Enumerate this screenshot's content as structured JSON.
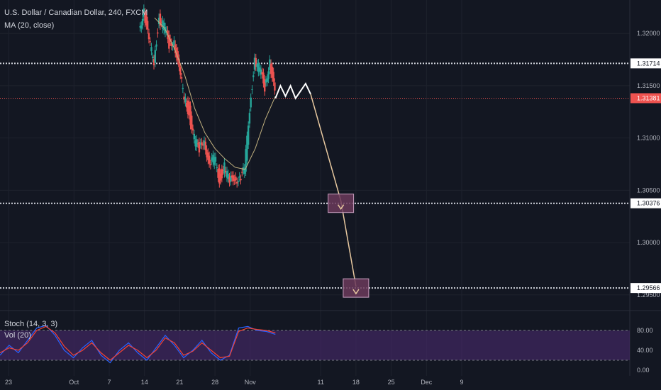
{
  "header": {
    "symbol_line": "U.S. Dollar / Canadian Dollar, 240, FXCM",
    "ma_line": "MA (20, close)",
    "stoch_line": "Stoch (14, 3, 3)",
    "vol_line": "Vol (20)"
  },
  "colors": {
    "background": "#131722",
    "grid": "#1e222d",
    "up": "#26a69a",
    "down": "#ef5350",
    "ma": "#c2b280",
    "level_line": "#d1d4dc",
    "current_price": "#ef5350",
    "target_box": "#6b3a5a",
    "projection": "#e8c9a0",
    "stoch_band": "#4a2a6e",
    "stoch_k": "#2962ff",
    "stoch_d": "#f44336"
  },
  "chart_data": {
    "type": "line",
    "title": "U.S. Dollar / Canadian Dollar, 240, FXCM",
    "ylim": [
      1.2935,
      1.3232
    ],
    "xlabel": "",
    "ylabel": "",
    "x_ticks": [
      "23",
      "Oct",
      "7",
      "14",
      "21",
      "28",
      "Nov",
      "11",
      "18",
      "25",
      "Dec",
      "9"
    ],
    "y_ticks": [
      "1.32000",
      "1.31500",
      "1.31000",
      "1.30500",
      "1.30000",
      "1.29500"
    ],
    "horizontal_levels": [
      {
        "label": "1.31714",
        "value": 1.31714,
        "style": "dotted"
      },
      {
        "label": "1.31381",
        "value": 1.31381,
        "style": "current"
      },
      {
        "label": "1.30376",
        "value": 1.30376,
        "style": "dotted"
      },
      {
        "label": "1.29566",
        "value": 1.29566,
        "style": "dotted"
      }
    ],
    "price_path": [
      {
        "day": 27,
        "close": 1.3205
      },
      {
        "day": 28,
        "close": 1.3222
      },
      {
        "day": 29,
        "close": 1.319
      },
      {
        "day": 30,
        "close": 1.3175
      },
      {
        "day": 31,
        "close": 1.3215
      },
      {
        "day": 32,
        "close": 1.3205
      },
      {
        "day": 33,
        "close": 1.319
      },
      {
        "day": 34,
        "close": 1.3195
      },
      {
        "day": 35,
        "close": 1.3162
      },
      {
        "day": 36,
        "close": 1.314
      },
      {
        "day": 37,
        "close": 1.3125
      },
      {
        "day": 38,
        "close": 1.3098
      },
      {
        "day": 39,
        "close": 1.3088
      },
      {
        "day": 40,
        "close": 1.3102
      },
      {
        "day": 41,
        "close": 1.307
      },
      {
        "day": 42,
        "close": 1.3082
      },
      {
        "day": 43,
        "close": 1.3062
      },
      {
        "day": 44,
        "close": 1.3072
      },
      {
        "day": 45,
        "close": 1.3056
      },
      {
        "day": 46,
        "close": 1.3065
      },
      {
        "day": 47,
        "close": 1.306
      },
      {
        "day": 48,
        "close": 1.3068
      },
      {
        "day": 49,
        "close": 1.313
      },
      {
        "day": 50,
        "close": 1.3175
      },
      {
        "day": 51,
        "close": 1.3163
      },
      {
        "day": 52,
        "close": 1.315
      },
      {
        "day": 53,
        "close": 1.3175
      },
      {
        "day": 54,
        "close": 1.314
      }
    ],
    "ma_20": [
      {
        "day": 30,
        "value": 1.3215
      },
      {
        "day": 32,
        "value": 1.3205
      },
      {
        "day": 34,
        "value": 1.3185
      },
      {
        "day": 36,
        "value": 1.316
      },
      {
        "day": 38,
        "value": 1.3128
      },
      {
        "day": 40,
        "value": 1.3105
      },
      {
        "day": 42,
        "value": 1.309
      },
      {
        "day": 44,
        "value": 1.308
      },
      {
        "day": 46,
        "value": 1.3072
      },
      {
        "day": 48,
        "value": 1.307
      },
      {
        "day": 50,
        "value": 1.309
      },
      {
        "day": 52,
        "value": 1.3118
      },
      {
        "day": 54,
        "value": 1.314
      }
    ],
    "projection_path": [
      {
        "day": 54,
        "value": 1.3138
      },
      {
        "day": 55,
        "value": 1.315
      },
      {
        "day": 56,
        "value": 1.314
      },
      {
        "day": 57,
        "value": 1.315
      },
      {
        "day": 58,
        "value": 1.3138
      },
      {
        "day": 60,
        "value": 1.3152
      },
      {
        "day": 61,
        "value": 1.3142
      },
      {
        "day": 67,
        "value": 1.304
      },
      {
        "day": 70,
        "value": 1.2958
      }
    ],
    "stochastic": {
      "ylim": [
        0,
        100
      ],
      "ticks": [
        "80.00",
        "40.00",
        "0.00"
      ],
      "band": [
        20,
        80
      ],
      "k": [
        30,
        50,
        35,
        60,
        85,
        90,
        70,
        40,
        25,
        45,
        60,
        30,
        15,
        40,
        55,
        35,
        20,
        45,
        70,
        50,
        25,
        40,
        60,
        35,
        20,
        30,
        85,
        88,
        80,
        78,
        72
      ],
      "d": [
        35,
        45,
        40,
        55,
        80,
        88,
        75,
        48,
        30,
        40,
        55,
        35,
        20,
        35,
        50,
        40,
        25,
        40,
        65,
        55,
        30,
        38,
        55,
        40,
        25,
        28,
        78,
        85,
        82,
        80,
        75
      ]
    }
  }
}
